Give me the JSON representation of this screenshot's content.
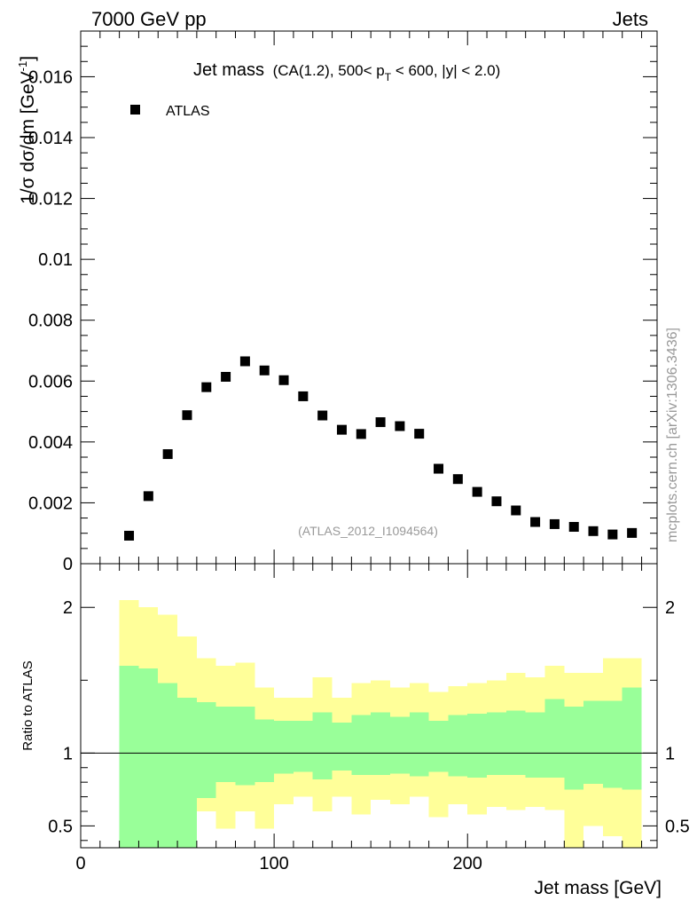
{
  "header": {
    "left": "7000 GeV pp",
    "right": "Jets"
  },
  "side_label": "mcplots.cern.ch [arXiv:1306.3436]",
  "analysis_id": "(ATLAS_2012_I1094564)",
  "chart_data": [
    {
      "type": "scatter",
      "title": "Jet mass",
      "subtitle": {
        "pre": "(CA(1.2), 500< p",
        "sub": "T",
        "post": " < 600, |y| < 2.0)"
      },
      "ylabel": "1/σ dσ/dm [GeV",
      "ylabel_sup": "-1",
      "ylabel_post": "]",
      "xlim": [
        0,
        298
      ],
      "ylim": [
        0,
        0.0175
      ],
      "yticks": [
        0,
        0.002,
        0.004,
        0.006,
        0.008,
        0.01,
        0.012,
        0.014,
        0.016
      ],
      "ytick_labels": [
        "0",
        "0.002",
        "0.004",
        "0.006",
        "0.008",
        "0.01",
        "0.012",
        "0.014",
        "0.016"
      ],
      "legend": {
        "placement": "top-left",
        "entries": [
          "ATLAS"
        ]
      },
      "series": [
        {
          "name": "ATLAS",
          "marker": "square",
          "color": "#000000",
          "x": [
            25,
            35,
            45,
            55,
            65,
            75,
            85,
            95,
            105,
            115,
            125,
            135,
            145,
            155,
            165,
            175,
            185,
            195,
            205,
            215,
            225,
            235,
            245,
            255,
            265,
            275,
            285
          ],
          "y": [
            0.00092,
            0.00222,
            0.0036,
            0.00488,
            0.0058,
            0.00614,
            0.00665,
            0.00635,
            0.00603,
            0.0055,
            0.00487,
            0.0044,
            0.00426,
            0.00465,
            0.00452,
            0.00427,
            0.00312,
            0.00278,
            0.00236,
            0.00205,
            0.00175,
            0.00137,
            0.0013,
            0.00121,
            0.00107,
            0.00096,
            0.00101
          ]
        }
      ]
    },
    {
      "type": "area",
      "ylabel": "Ratio to ATLAS",
      "xlabel": "Jet mass [GeV]",
      "xlim": [
        0,
        298
      ],
      "ylim": [
        0.35,
        2.3
      ],
      "xticks": [
        0,
        100,
        200
      ],
      "xtick_labels": [
        "0",
        "100",
        "200"
      ],
      "yticks": [
        0.5,
        1,
        2
      ],
      "ytick_labels": [
        "0.5",
        "1",
        "2"
      ],
      "reference_line": 1,
      "bin_edges": [
        20,
        30,
        40,
        50,
        60,
        70,
        80,
        90,
        100,
        110,
        120,
        130,
        140,
        150,
        160,
        170,
        180,
        190,
        200,
        210,
        220,
        230,
        240,
        250,
        260,
        270,
        280,
        290
      ],
      "bands": [
        {
          "name": "outer",
          "color": "#ffff99",
          "upper": [
            2.05,
            2.0,
            1.95,
            1.8,
            1.65,
            1.6,
            1.62,
            1.45,
            1.38,
            1.38,
            1.52,
            1.38,
            1.48,
            1.5,
            1.45,
            1.48,
            1.42,
            1.46,
            1.48,
            1.5,
            1.55,
            1.52,
            1.6,
            1.55,
            1.55,
            1.65,
            1.65,
            1.9,
            1.75
          ],
          "lower": [
            0.35,
            0.35,
            0.35,
            0.58,
            0.6,
            0.48,
            0.6,
            0.48,
            0.65,
            0.7,
            0.6,
            0.7,
            0.58,
            0.68,
            0.65,
            0.7,
            0.56,
            0.65,
            0.58,
            0.63,
            0.61,
            0.63,
            0.61,
            0.35,
            0.5,
            0.43,
            0.35,
            0.35,
            0.35
          ]
        },
        {
          "name": "inner",
          "color": "#99ff99",
          "upper": [
            1.6,
            1.58,
            1.48,
            1.38,
            1.35,
            1.32,
            1.32,
            1.23,
            1.22,
            1.22,
            1.28,
            1.21,
            1.26,
            1.28,
            1.25,
            1.28,
            1.22,
            1.26,
            1.27,
            1.28,
            1.29,
            1.28,
            1.37,
            1.32,
            1.36,
            1.36,
            1.45,
            1.36,
            1.4
          ],
          "lower": [
            0.35,
            0.35,
            0.35,
            0.35,
            0.69,
            0.8,
            0.78,
            0.8,
            0.86,
            0.87,
            0.82,
            0.88,
            0.85,
            0.85,
            0.86,
            0.84,
            0.87,
            0.84,
            0.83,
            0.85,
            0.85,
            0.83,
            0.83,
            0.75,
            0.79,
            0.76,
            0.75,
            0.71,
            0.71
          ]
        }
      ]
    }
  ]
}
